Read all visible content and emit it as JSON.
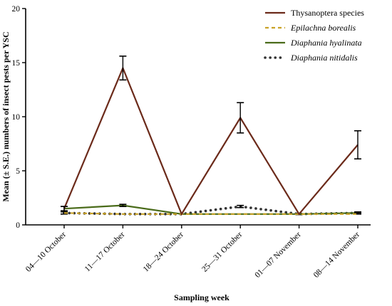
{
  "chart_data": {
    "type": "line",
    "categories": [
      "04—10 October",
      "11—17 October",
      "18—24 October",
      "25—31 October",
      "01—07 November",
      "08—14 November"
    ],
    "xlabel": "Sampling week",
    "ylabel": "Mean (± S.E.) numbers of insect pests per YSC",
    "ylim": [
      0,
      20
    ],
    "yticks": [
      0,
      5,
      10,
      15,
      20
    ],
    "legend_position": "top-right",
    "grid": false,
    "series": [
      {
        "name": "Thysanoptera species",
        "style": "solid",
        "italic": false,
        "color": "#6b2a1a",
        "values": [
          1.5,
          14.5,
          1.0,
          9.9,
          1.0,
          7.4
        ],
        "errors": [
          0.2,
          1.1,
          0.0,
          1.4,
          0.0,
          1.3
        ]
      },
      {
        "name": "Epilachna borealis",
        "style": "dashed",
        "italic": true,
        "color": "#c9a227",
        "values": [
          1.1,
          1.0,
          1.0,
          1.0,
          1.0,
          1.0
        ],
        "errors": [
          0.0,
          0.0,
          0.0,
          0.0,
          0.0,
          0.0
        ]
      },
      {
        "name": "Diaphania hyalinata",
        "style": "solid",
        "italic": true,
        "color": "#4a6b1a",
        "values": [
          1.5,
          1.8,
          1.0,
          1.0,
          1.0,
          1.1
        ],
        "errors": [
          0.2,
          0.1,
          0.0,
          0.0,
          0.0,
          0.05
        ]
      },
      {
        "name": "Diaphania nitidalis",
        "style": "dotted",
        "italic": true,
        "color": "#333333",
        "values": [
          1.1,
          1.0,
          1.0,
          1.7,
          1.0,
          1.1
        ],
        "errors": [
          0.1,
          0.0,
          0.0,
          0.1,
          0.05,
          0.1
        ]
      }
    ]
  }
}
